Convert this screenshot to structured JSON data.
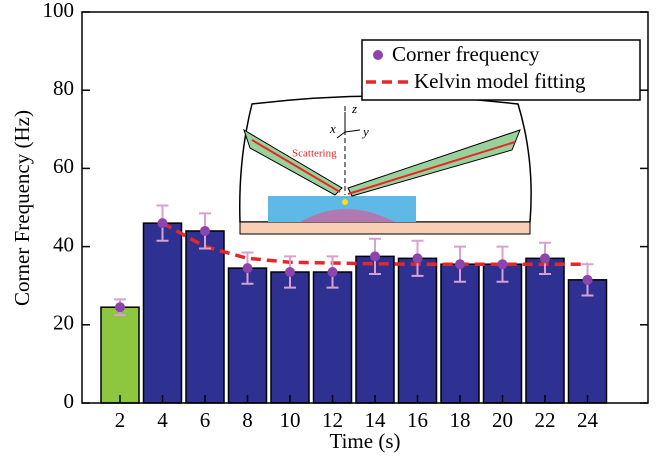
{
  "chart_data": {
    "type": "bar",
    "ylabel": "Corner Frequency (Hz)",
    "xlabel": "Time (s)",
    "categories": [
      "2",
      "4",
      "6",
      "8",
      "10",
      "12",
      "14",
      "16",
      "18",
      "20",
      "22",
      "24"
    ],
    "bar_colors": [
      "#8dc63f",
      "#2e3192",
      "#2e3192",
      "#2e3192",
      "#2e3192",
      "#2e3192",
      "#2e3192",
      "#2e3192",
      "#2e3192",
      "#2e3192",
      "#2e3192",
      "#2e3192"
    ],
    "series": [
      {
        "name": "Corner frequency",
        "color": "#8e44ad",
        "error_color": "#d9a0d0",
        "values": [
          24.5,
          46,
          44,
          34.5,
          33.5,
          33.5,
          37.5,
          37,
          35.5,
          35.5,
          37,
          31.5
        ],
        "errors": [
          2,
          4.5,
          4.5,
          4,
          4,
          4,
          4.5,
          4.5,
          4.5,
          4.5,
          4,
          4
        ]
      },
      {
        "name": "Kelvin model fitting",
        "color": "#e8262a",
        "values": [
          null,
          46,
          40,
          37,
          36,
          35.8,
          35.6,
          35.5,
          35.5,
          35.5,
          35.5,
          35.5
        ]
      }
    ],
    "ylim": [
      0,
      100
    ],
    "yticks": [
      0,
      20,
      40,
      60,
      80,
      100
    ],
    "legend": "upper right"
  },
  "inset": {
    "labels": [
      "z",
      "x",
      "y",
      "Scattering"
    ]
  }
}
